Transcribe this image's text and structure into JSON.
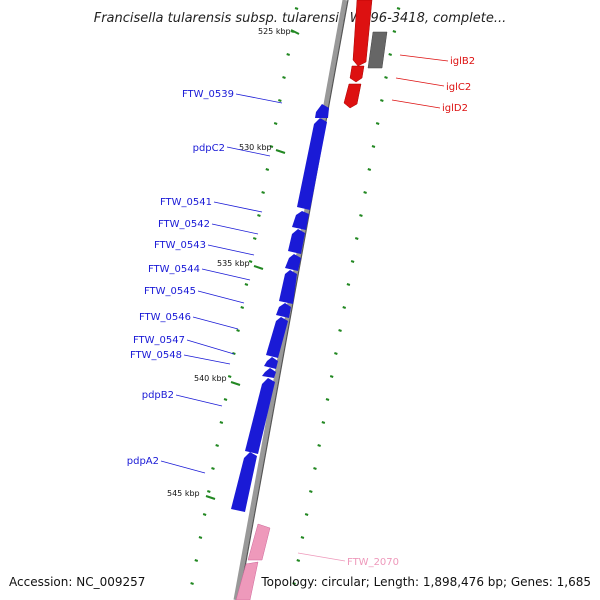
{
  "title": "Francisella tularensis subsp. tularensis WY96-3418, complete...",
  "accession": "Accession: NC_009257",
  "topology": "Topology: circular; Length: 1,898,476 bp; Genes: 1,685",
  "scale_labels": [
    {
      "text": "525 kbp"
    },
    {
      "text": "530 kbp"
    },
    {
      "text": "535 kbp"
    },
    {
      "text": "540 kbp"
    },
    {
      "text": "545 kbp"
    }
  ],
  "genes_forward": [
    {
      "name": "iglB2",
      "color": "#dd1111"
    },
    {
      "name": "iglC2",
      "color": "#dd1111"
    },
    {
      "name": "iglD2",
      "color": "#dd1111"
    },
    {
      "name": "FTW_2070",
      "color": "#ee99bb"
    }
  ],
  "genes_reverse": [
    {
      "name": "FTW_0539",
      "color": "#1a1ad6"
    },
    {
      "name": "pdpC2",
      "color": "#1a1ad6"
    },
    {
      "name": "FTW_0541",
      "color": "#1a1ad6"
    },
    {
      "name": "FTW_0542",
      "color": "#1a1ad6"
    },
    {
      "name": "FTW_0543",
      "color": "#1a1ad6"
    },
    {
      "name": "FTW_0544",
      "color": "#1a1ad6"
    },
    {
      "name": "FTW_0545",
      "color": "#1a1ad6"
    },
    {
      "name": "FTW_0546",
      "color": "#1a1ad6"
    },
    {
      "name": "FTW_0547",
      "color": "#1a1ad6"
    },
    {
      "name": "FTW_0548",
      "color": "#1a1ad6"
    },
    {
      "name": "pdpB2",
      "color": "#1a1ad6"
    },
    {
      "name": "pdpA2",
      "color": "#1a1ad6"
    }
  ],
  "colors": {
    "backbone": "#888888",
    "tick": "#228822",
    "forward": "#dd1111",
    "reverse": "#1a1ad6",
    "other": "#777777",
    "pink": "#ee99bb"
  }
}
